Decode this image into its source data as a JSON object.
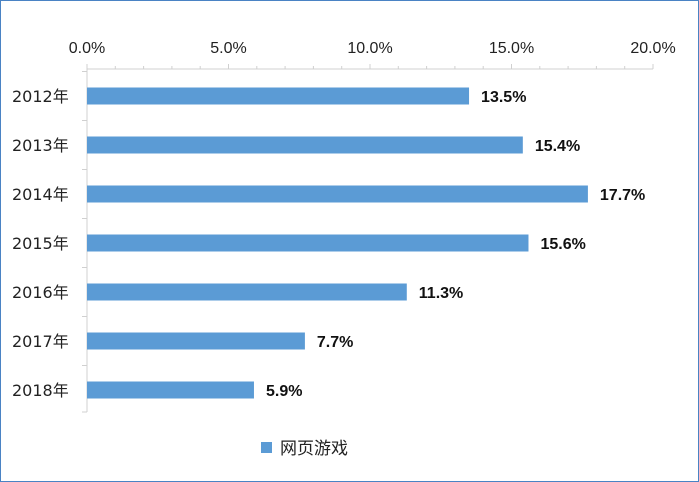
{
  "chart_data": {
    "type": "bar",
    "orientation": "horizontal",
    "categories": [
      "2012年",
      "2013年",
      "2014年",
      "2015年",
      "2016年",
      "2017年",
      "2018年"
    ],
    "series": [
      {
        "name": "网页游戏",
        "values": [
          13.5,
          15.4,
          17.7,
          15.6,
          11.3,
          7.7,
          5.9
        ],
        "value_labels": [
          "13.5%",
          "15.4%",
          "17.7%",
          "15.6%",
          "11.3%",
          "7.7%",
          "5.9%"
        ],
        "color": "#5b9bd5"
      }
    ],
    "x_ticks": [
      "0.0%",
      "5.0%",
      "10.0%",
      "15.0%",
      "20.0%"
    ],
    "x_tick_values": [
      0,
      5,
      10,
      15,
      20
    ],
    "xlim": [
      0,
      20
    ],
    "x_axis_position": "top",
    "grid": false,
    "legend_position": "bottom"
  },
  "colors": {
    "bar": "#5b9bd5",
    "frame": "#4a83c4",
    "axis": "#d0d0d0"
  }
}
